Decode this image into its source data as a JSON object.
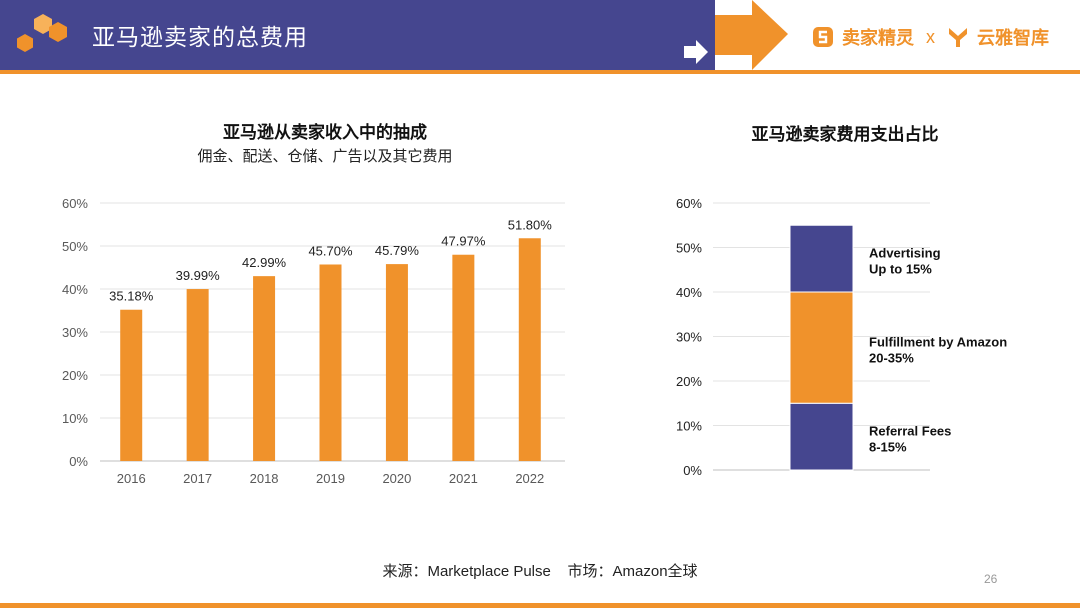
{
  "header": {
    "title": "亚马逊卖家的总费用",
    "brand_left": "卖家精灵",
    "brand_sep": "x",
    "brand_right": "云雅智库",
    "colors": {
      "band": "#45468f",
      "accent": "#f0922b"
    }
  },
  "left_chart": {
    "title": "亚马逊从卖家收入中的抽成",
    "subtitle": "佣金、配送、仓储、广告以及其它费用"
  },
  "right_chart": {
    "title": "亚马逊卖家费用支出占比"
  },
  "chart_data": [
    {
      "type": "bar",
      "title": "亚马逊从卖家收入中的抽成",
      "subtitle": "佣金、配送、仓储、广告以及其它费用",
      "categories": [
        "2016",
        "2017",
        "2018",
        "2019",
        "2020",
        "2021",
        "2022"
      ],
      "values": [
        35.18,
        39.99,
        42.99,
        45.7,
        45.79,
        47.97,
        51.8
      ],
      "data_labels": [
        "35.18%",
        "39.99%",
        "42.99%",
        "45.70%",
        "45.79%",
        "47.97%",
        "51.80%"
      ],
      "y_ticks": [
        "0%",
        "10%",
        "20%",
        "30%",
        "40%",
        "50%",
        "60%"
      ],
      "ylim": [
        0,
        60
      ],
      "grid": true,
      "color": "#f0922b"
    },
    {
      "type": "bar",
      "stacked": true,
      "title": "亚马逊卖家费用支出占比",
      "y_ticks": [
        "0%",
        "10%",
        "20%",
        "30%",
        "40%",
        "50%",
        "60%"
      ],
      "ylim": [
        0,
        60
      ],
      "grid": true,
      "segments": [
        {
          "label": "Referral Fees",
          "range": "8-15%",
          "value": 15,
          "color": "#45468f"
        },
        {
          "label": "Fulfillment by Amazon",
          "range": "20-35%",
          "value": 25,
          "color": "#f0922b"
        },
        {
          "label": "Advertising",
          "range": "Up to 15%",
          "value": 15,
          "color": "#45468f"
        }
      ]
    }
  ],
  "footer": {
    "source": "来源：Marketplace Pulse    市场：Amazon全球",
    "page_number": "26"
  }
}
